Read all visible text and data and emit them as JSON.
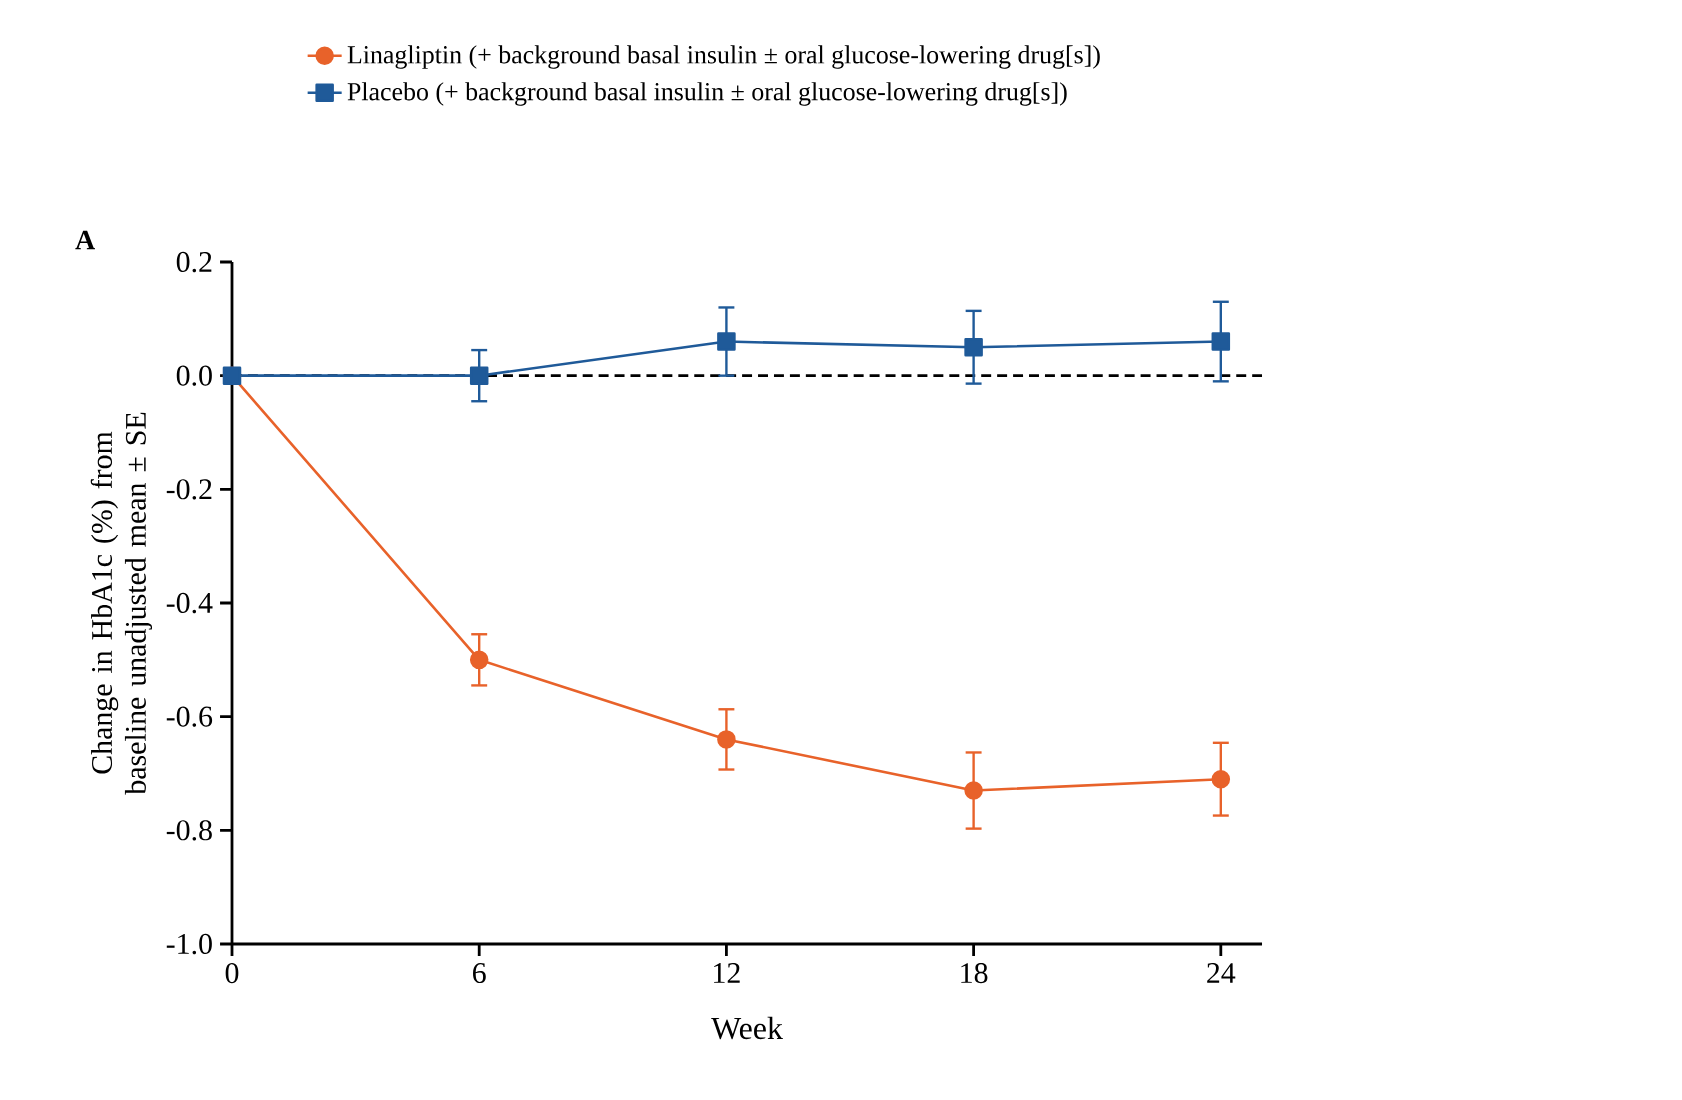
{
  "chart_data": {
    "type": "line",
    "xlabel": "Week",
    "ylabel": "Change in HbA1c (%) from baseline unadjusted mean ± SE",
    "annotations": [
      "A"
    ],
    "x": [
      0,
      6,
      12,
      18,
      24
    ],
    "series": [
      {
        "name": "Linagliptin (+ background basal insulin ± oral glucose-lowering drug[s])",
        "color": "#e8622a",
        "marker": "circle",
        "values": [
          0,
          -0.5,
          -0.64,
          -0.73,
          -0.71
        ],
        "errors": [
          null,
          0.045,
          0.053,
          0.067,
          0.064
        ]
      },
      {
        "name": "Placebo (+ background basal insulin ± oral glucose-lowering drug[s])",
        "color": "#1f5a99",
        "marker": "square",
        "values": [
          0,
          0,
          0.06,
          0.05,
          0.06
        ],
        "errors": [
          null,
          0.045,
          0.06,
          0.064,
          0.07
        ]
      }
    ],
    "xlim": [
      0,
      25
    ],
    "ylim": [
      -1.0,
      0.2
    ],
    "xticks": [
      0,
      6,
      12,
      18,
      24
    ],
    "yticks": [
      0.2,
      {
        "value": 0,
        "label": "0.0"
      },
      -0.2,
      -0.4,
      -0.6,
      -0.8,
      {
        "value": -1.0,
        "label": "-1.0"
      }
    ],
    "ref_lines": [
      {
        "axis": "y",
        "value": 0,
        "color": "#000000",
        "line_style": "dashed"
      }
    ],
    "legend": "top",
    "line_style": "solid",
    "grid": false
  }
}
